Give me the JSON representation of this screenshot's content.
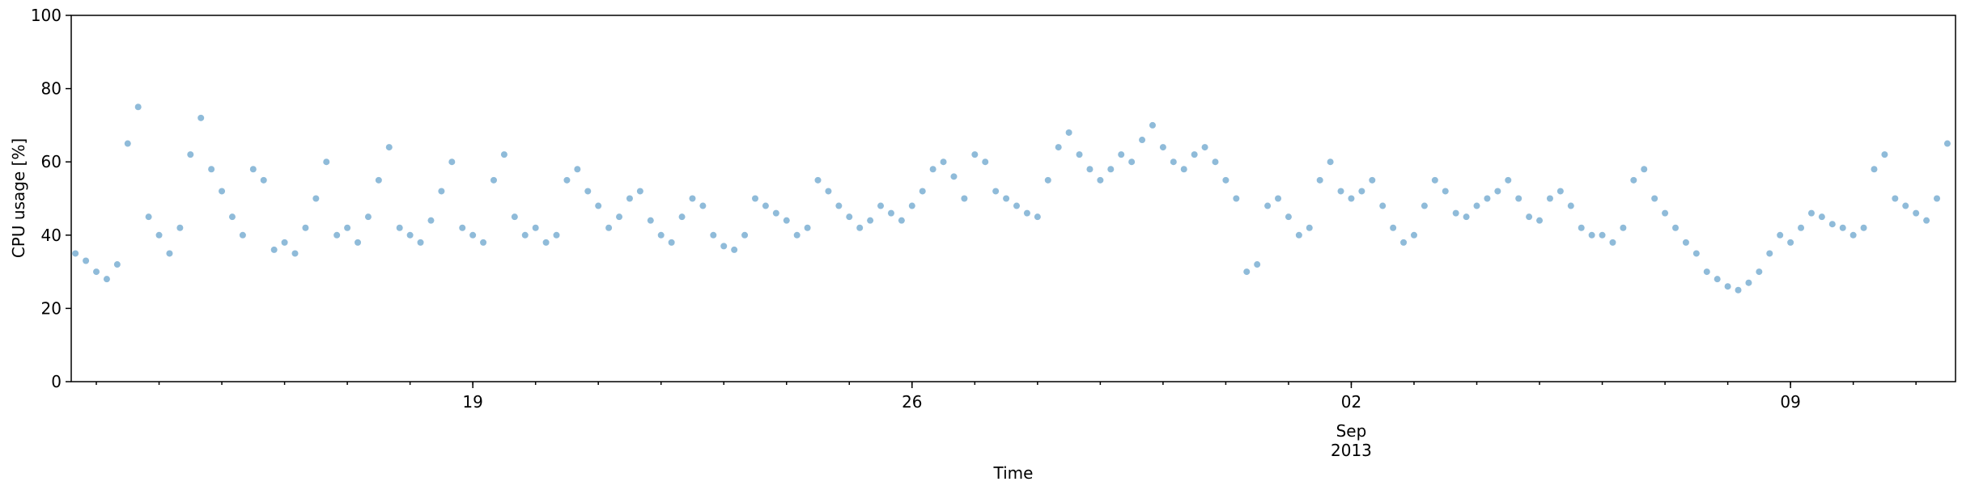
{
  "chart_data": {
    "type": "scatter",
    "ylabel": "CPU usage [%]",
    "xlabel": "Time",
    "x_month_label": "Sep",
    "x_year_label": "2013",
    "color": "#1f77b4",
    "xlim": [
      "2013-08-12T14:24",
      "2013-09-11T15:07"
    ],
    "xticks": [
      {
        "value": "2013-08-19T00:00",
        "label": "19"
      },
      {
        "value": "2013-08-26T00:00",
        "label": "26"
      },
      {
        "value": "2013-09-02T00:00",
        "label": "02"
      },
      {
        "value": "2013-09-09T00:00",
        "label": "09"
      }
    ],
    "ylim": [
      0,
      100
    ],
    "yticks": [
      0,
      20,
      40,
      60,
      80,
      100
    ],
    "x": [
      "2013-08-12T16:00",
      "2013-08-12T20:00",
      "2013-08-13T00:00",
      "2013-08-13T04:00",
      "2013-08-13T08:00",
      "2013-08-13T12:00",
      "2013-08-13T16:00",
      "2013-08-13T20:00",
      "2013-08-14T00:00",
      "2013-08-14T04:00",
      "2013-08-14T08:00",
      "2013-08-14T12:00",
      "2013-08-14T16:00",
      "2013-08-14T20:00",
      "2013-08-15T00:00",
      "2013-08-15T04:00",
      "2013-08-15T08:00",
      "2013-08-15T12:00",
      "2013-08-15T16:00",
      "2013-08-15T20:00",
      "2013-08-16T00:00",
      "2013-08-16T04:00",
      "2013-08-16T08:00",
      "2013-08-16T12:00",
      "2013-08-16T16:00",
      "2013-08-16T20:00",
      "2013-08-17T00:00",
      "2013-08-17T04:00",
      "2013-08-17T08:00",
      "2013-08-17T12:00",
      "2013-08-17T16:00",
      "2013-08-17T20:00",
      "2013-08-18T00:00",
      "2013-08-18T04:00",
      "2013-08-18T08:00",
      "2013-08-18T12:00",
      "2013-08-18T16:00",
      "2013-08-18T20:00",
      "2013-08-19T00:00",
      "2013-08-19T04:00",
      "2013-08-19T08:00",
      "2013-08-19T12:00",
      "2013-08-19T16:00",
      "2013-08-19T20:00",
      "2013-08-20T00:00",
      "2013-08-20T04:00",
      "2013-08-20T08:00",
      "2013-08-20T12:00",
      "2013-08-20T16:00",
      "2013-08-20T20:00",
      "2013-08-21T00:00",
      "2013-08-21T04:00",
      "2013-08-21T08:00",
      "2013-08-21T12:00",
      "2013-08-21T16:00",
      "2013-08-21T20:00",
      "2013-08-22T00:00",
      "2013-08-22T04:00",
      "2013-08-22T08:00",
      "2013-08-22T12:00",
      "2013-08-22T16:00",
      "2013-08-22T20:00",
      "2013-08-23T00:00",
      "2013-08-23T04:00",
      "2013-08-23T08:00",
      "2013-08-23T12:00",
      "2013-08-23T16:00",
      "2013-08-23T20:00",
      "2013-08-24T00:00",
      "2013-08-24T04:00",
      "2013-08-24T08:00",
      "2013-08-24T12:00",
      "2013-08-24T16:00",
      "2013-08-24T20:00",
      "2013-08-25T00:00",
      "2013-08-25T04:00",
      "2013-08-25T08:00",
      "2013-08-25T12:00",
      "2013-08-25T16:00",
      "2013-08-25T20:00",
      "2013-08-26T00:00",
      "2013-08-26T04:00",
      "2013-08-26T08:00",
      "2013-08-26T12:00",
      "2013-08-26T16:00",
      "2013-08-26T20:00",
      "2013-08-27T00:00",
      "2013-08-27T04:00",
      "2013-08-27T08:00",
      "2013-08-27T12:00",
      "2013-08-27T16:00",
      "2013-08-27T20:00",
      "2013-08-28T00:00",
      "2013-08-28T04:00",
      "2013-08-28T08:00",
      "2013-08-28T12:00",
      "2013-08-28T16:00",
      "2013-08-28T20:00",
      "2013-08-29T00:00",
      "2013-08-29T04:00",
      "2013-08-29T08:00",
      "2013-08-29T12:00",
      "2013-08-29T16:00",
      "2013-08-29T20:00",
      "2013-08-30T00:00",
      "2013-08-30T04:00",
      "2013-08-30T08:00",
      "2013-08-30T12:00",
      "2013-08-30T16:00",
      "2013-08-30T20:00",
      "2013-08-31T00:00",
      "2013-08-31T04:00",
      "2013-08-31T08:00",
      "2013-08-31T12:00",
      "2013-08-31T16:00",
      "2013-08-31T20:00",
      "2013-09-01T00:00",
      "2013-09-01T04:00",
      "2013-09-01T08:00",
      "2013-09-01T12:00",
      "2013-09-01T16:00",
      "2013-09-01T20:00",
      "2013-09-02T00:00",
      "2013-09-02T04:00",
      "2013-09-02T08:00",
      "2013-09-02T12:00",
      "2013-09-02T16:00",
      "2013-09-02T20:00",
      "2013-09-03T00:00",
      "2013-09-03T04:00",
      "2013-09-03T08:00",
      "2013-09-03T12:00",
      "2013-09-03T16:00",
      "2013-09-03T20:00",
      "2013-09-04T00:00",
      "2013-09-04T04:00",
      "2013-09-04T08:00",
      "2013-09-04T12:00",
      "2013-09-04T16:00",
      "2013-09-04T20:00",
      "2013-09-05T00:00",
      "2013-09-05T04:00",
      "2013-09-05T08:00",
      "2013-09-05T12:00",
      "2013-09-05T16:00",
      "2013-09-05T20:00",
      "2013-09-06T00:00",
      "2013-09-06T04:00",
      "2013-09-06T08:00",
      "2013-09-06T12:00",
      "2013-09-06T16:00",
      "2013-09-06T20:00",
      "2013-09-07T00:00",
      "2013-09-07T04:00",
      "2013-09-07T08:00",
      "2013-09-07T12:00",
      "2013-09-07T16:00",
      "2013-09-07T20:00",
      "2013-09-08T00:00",
      "2013-09-08T04:00",
      "2013-09-08T08:00",
      "2013-09-08T12:00",
      "2013-09-08T16:00",
      "2013-09-08T20:00",
      "2013-09-09T00:00",
      "2013-09-09T04:00",
      "2013-09-09T08:00",
      "2013-09-09T12:00",
      "2013-09-09T16:00",
      "2013-09-09T20:00",
      "2013-09-10T00:00",
      "2013-09-10T04:00",
      "2013-09-10T08:00",
      "2013-09-10T12:00",
      "2013-09-10T16:00",
      "2013-09-10T20:00",
      "2013-09-11T00:00",
      "2013-09-11T04:00",
      "2013-09-11T08:00",
      "2013-09-11T12:00"
    ],
    "values": [
      35,
      33,
      30,
      28,
      32,
      65,
      75,
      45,
      40,
      35,
      42,
      62,
      72,
      58,
      52,
      45,
      40,
      58,
      55,
      36,
      38,
      35,
      42,
      50,
      60,
      40,
      42,
      38,
      45,
      55,
      64,
      42,
      40,
      38,
      44,
      52,
      60,
      42,
      40,
      38,
      55,
      62,
      45,
      40,
      42,
      38,
      40,
      55,
      58,
      52,
      48,
      42,
      45,
      50,
      52,
      44,
      40,
      38,
      45,
      50,
      48,
      40,
      37,
      36,
      40,
      50,
      48,
      46,
      44,
      40,
      42,
      55,
      52,
      48,
      45,
      42,
      44,
      48,
      46,
      44,
      48,
      52,
      58,
      60,
      56,
      50,
      62,
      60,
      52,
      50,
      48,
      46,
      45,
      55,
      64,
      68,
      62,
      58,
      55,
      58,
      62,
      60,
      66,
      70,
      64,
      60,
      58,
      62,
      64,
      60,
      55,
      50,
      30,
      32,
      48,
      50,
      45,
      40,
      42,
      55,
      60,
      52,
      50,
      52,
      55,
      48,
      42,
      38,
      40,
      48,
      55,
      52,
      46,
      45,
      48,
      50,
      52,
      55,
      50,
      45,
      44,
      50,
      52,
      48,
      42,
      40,
      40,
      38,
      42,
      55,
      58,
      50,
      46,
      42,
      38,
      35,
      30,
      28,
      26,
      25,
      27,
      30,
      35,
      40,
      38,
      42,
      46,
      45,
      43,
      42,
      40,
      42,
      58,
      62,
      50,
      48,
      46,
      44,
      50,
      65
    ]
  }
}
